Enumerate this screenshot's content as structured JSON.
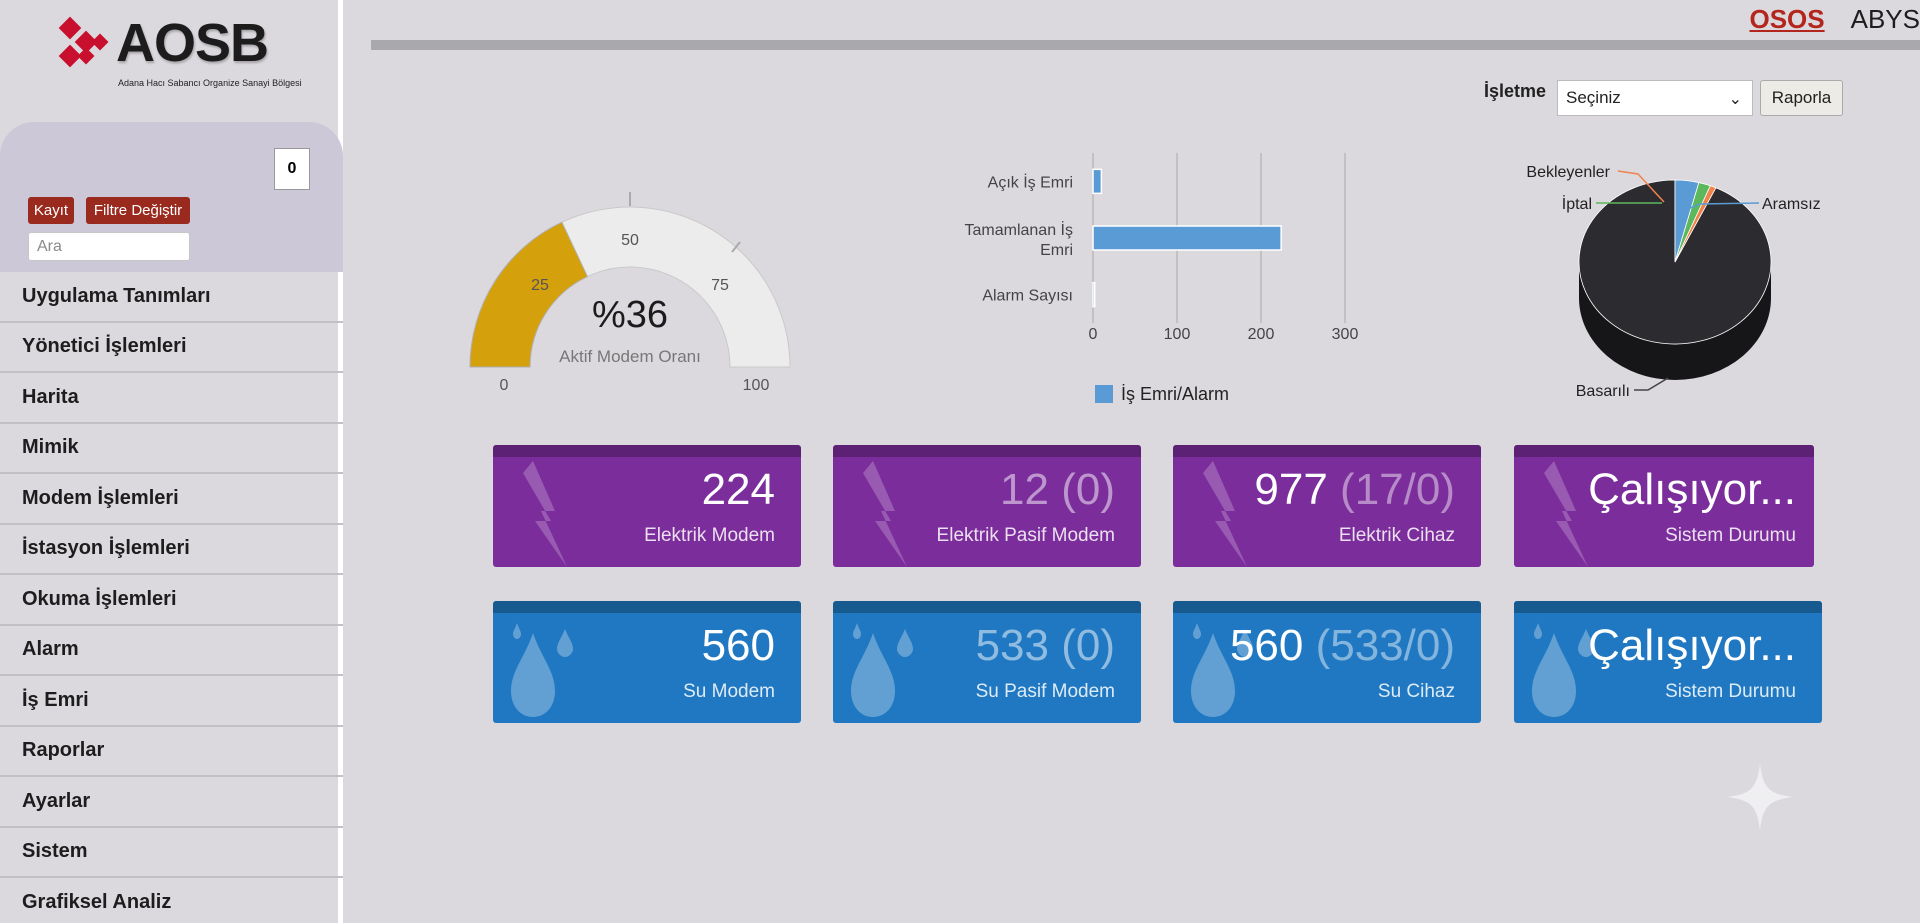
{
  "logo": {
    "name": "AOSB",
    "subtitle": "Adana Hacı Sabancı Organize Sanayi Bölgesi"
  },
  "filter": {
    "count": "0",
    "kayit_label": "Kayıt",
    "filtre_label": "Filtre Değiştir",
    "search_placeholder": "Ara"
  },
  "menu": [
    "Uygulama Tanımları",
    "Yönetici İşlemleri",
    "Harita",
    "Mimik",
    "Modem İşlemleri",
    "İstasyon İşlemleri",
    "Okuma İşlemleri",
    "Alarm",
    "İş Emri",
    "Raporlar",
    "Ayarlar",
    "Sistem",
    "Grafiksel Analiz"
  ],
  "top_nav": {
    "osos": "OSOS",
    "abys": "ABYS"
  },
  "isletme": {
    "label": "İşletme",
    "selected": "Seçiniz",
    "report_button": "Raporla"
  },
  "gauge": {
    "value_label": "%36",
    "caption": "Aktif Modem Oranı",
    "value": 36,
    "min": 0,
    "max": 100,
    "ticks": [
      "0",
      "25",
      "50",
      "75",
      "100"
    ],
    "fill_color": "#d4a00b",
    "track_color": "#ececec"
  },
  "chart_data": [
    {
      "type": "bar",
      "orientation": "horizontal",
      "categories": [
        "Açık İş Emri",
        "Tamamlanan İş Emri",
        "Alarm Sayısı"
      ],
      "series": [
        {
          "name": "İş Emri/Alarm",
          "values": [
            10,
            224,
            2
          ]
        }
      ],
      "xlim": [
        0,
        300
      ],
      "xticks": [
        "0",
        "100",
        "200",
        "300"
      ],
      "grid": true,
      "legend": "bottom",
      "color": "#5b9bd5"
    },
    {
      "type": "pie",
      "categories": [
        "Basarılı",
        "Aramsız",
        "İptal",
        "Bekleyenler"
      ],
      "values": [
        93,
        4,
        2,
        1
      ],
      "colors": [
        "#2c2c30",
        "#5b9bd5",
        "#5cb85c",
        "#f0834c"
      ],
      "legend": "callout-labels"
    }
  ],
  "tiles": {
    "electric": [
      {
        "value": "224",
        "extra": "",
        "label": "Elektrik Modem",
        "dim": false
      },
      {
        "value": "12 (0)",
        "extra": "",
        "label": "Elektrik Pasif Modem",
        "dim": true
      },
      {
        "value": "977",
        "extra": " (17/0)",
        "label": "Elektrik Cihaz",
        "dim": false
      },
      {
        "value": "Çalışıyor...",
        "extra": "",
        "label": "Sistem Durumu",
        "dim": false
      }
    ],
    "water": [
      {
        "value": "560",
        "extra": "",
        "label": "Su Modem",
        "dim": false
      },
      {
        "value": "533 (0)",
        "extra": "",
        "label": "Su Pasif Modem",
        "dim": true
      },
      {
        "value": "560",
        "extra": " (533/0)",
        "label": "Su Cihaz",
        "dim": false
      },
      {
        "value": "Çalışıyor...",
        "extra": "",
        "label": "Sistem Durumu",
        "dim": false
      }
    ]
  }
}
